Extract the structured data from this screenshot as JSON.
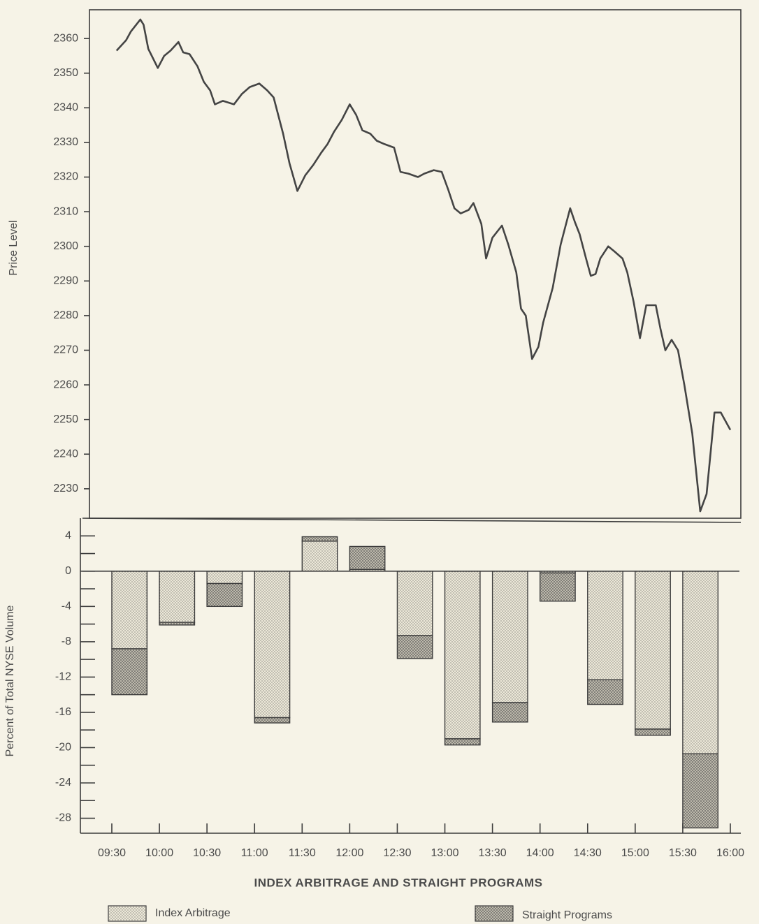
{
  "chart_data": [
    {
      "type": "line",
      "ylabel": "Price Level",
      "color": "#444444",
      "x": [
        "09:33",
        "09:39",
        "09:42",
        "09:48",
        "09:50",
        "09:53",
        "09:59",
        "10:03",
        "10:07",
        "10:12",
        "10:15",
        "10:19",
        "10:24",
        "10:28",
        "10:32",
        "10:35",
        "10:40",
        "10:47",
        "10:52",
        "10:57",
        "11:03",
        "11:08",
        "11:12",
        "11:18",
        "11:22",
        "11:27",
        "11:32",
        "11:37",
        "11:42",
        "11:46",
        "11:50",
        "11:55",
        "12:00",
        "12:04",
        "12:08",
        "12:13",
        "12:17",
        "12:22",
        "12:28",
        "12:32",
        "12:37",
        "12:43",
        "12:47",
        "12:53",
        "12:58",
        "13:02",
        "13:06",
        "13:10",
        "13:15",
        "13:18",
        "13:23",
        "13:26",
        "13:30",
        "13:36",
        "13:40",
        "13:45",
        "13:48",
        "13:51",
        "13:55",
        "13:59",
        "14:02",
        "14:08",
        "14:13",
        "14:19",
        "14:22",
        "14:25",
        "14:29",
        "14:32",
        "14:35",
        "14:38",
        "14:43",
        "14:47",
        "14:52",
        "14:55",
        "14:59",
        "15:03",
        "15:07",
        "15:13",
        "15:16",
        "15:19",
        "15:23",
        "15:27",
        "15:31",
        "15:36",
        "15:41",
        "15:45",
        "15:50",
        "15:54",
        "16:00"
      ],
      "values": [
        2356.5,
        2359.5,
        2362,
        2365.5,
        2364,
        2357,
        2351.5,
        2355,
        2356.5,
        2359,
        2356,
        2355.5,
        2352,
        2347.5,
        2345,
        2341,
        2342,
        2341,
        2344,
        2346,
        2347,
        2345,
        2343,
        2332.5,
        2324,
        2316,
        2320.5,
        2323.5,
        2327,
        2329.5,
        2333,
        2336.5,
        2341,
        2338,
        2333.5,
        2332.5,
        2330.5,
        2329.5,
        2328.5,
        2321.5,
        2321,
        2320,
        2321,
        2322,
        2321.5,
        2316.5,
        2311,
        2309.5,
        2310.5,
        2312.5,
        2306.5,
        2296.5,
        2302.5,
        2306,
        2300.5,
        2292.5,
        2282,
        2280,
        2267.5,
        2271,
        2278,
        2288,
        2300.5,
        2311,
        2307,
        2303.5,
        2296.5,
        2291.5,
        2292,
        2296.5,
        2300,
        2298.5,
        2296.5,
        2292.5,
        2284,
        2273.5,
        2283,
        2283,
        2276,
        2270,
        2273,
        2270,
        2260,
        2246,
        2223.5,
        2228.5,
        2252,
        2252,
        2247
      ],
      "ylim": [
        2221.5,
        2368.3
      ],
      "yticks": [
        2230,
        2240,
        2250,
        2260,
        2270,
        2280,
        2290,
        2300,
        2310,
        2320,
        2330,
        2340,
        2350,
        2360
      ]
    },
    {
      "type": "bar",
      "stacked": true,
      "title": "INDEX ARBITRAGE AND STRAIGHT PROGRAMS",
      "ylabel": "Percent of Total NYSE Volume",
      "xticks": [
        "09:30",
        "10:00",
        "10:30",
        "11:00",
        "11:30",
        "12:00",
        "12:30",
        "13:00",
        "13:30",
        "14:00",
        "14:30",
        "15:00",
        "15:30",
        "16:00"
      ],
      "series": [
        {
          "name": "Index Arbitrage",
          "color": "#ece8d8",
          "values": [
            -8.8,
            -5.8,
            -1.4,
            -16.6,
            3.4,
            0.2,
            -7.3,
            -19,
            -14.9,
            -0.2,
            -12.3,
            -17.9,
            -20.7
          ]
        },
        {
          "name": "Straight Programs",
          "color": "#bdb9ab",
          "values": [
            -5.2,
            -0.3,
            -2.6,
            -0.6,
            0.5,
            2.6,
            -2.6,
            -0.7,
            -2.2,
            -3.2,
            -2.8,
            -0.7,
            -8.4
          ]
        }
      ],
      "ylim": [
        -29.7,
        6
      ],
      "yticks": [
        4,
        0,
        -4,
        -8,
        -12,
        -16,
        -20,
        -24,
        -28
      ],
      "minor_yticks": [
        2,
        -2,
        -6,
        -10,
        -14,
        -18,
        -22,
        -26
      ],
      "legend": "bottom"
    }
  ]
}
